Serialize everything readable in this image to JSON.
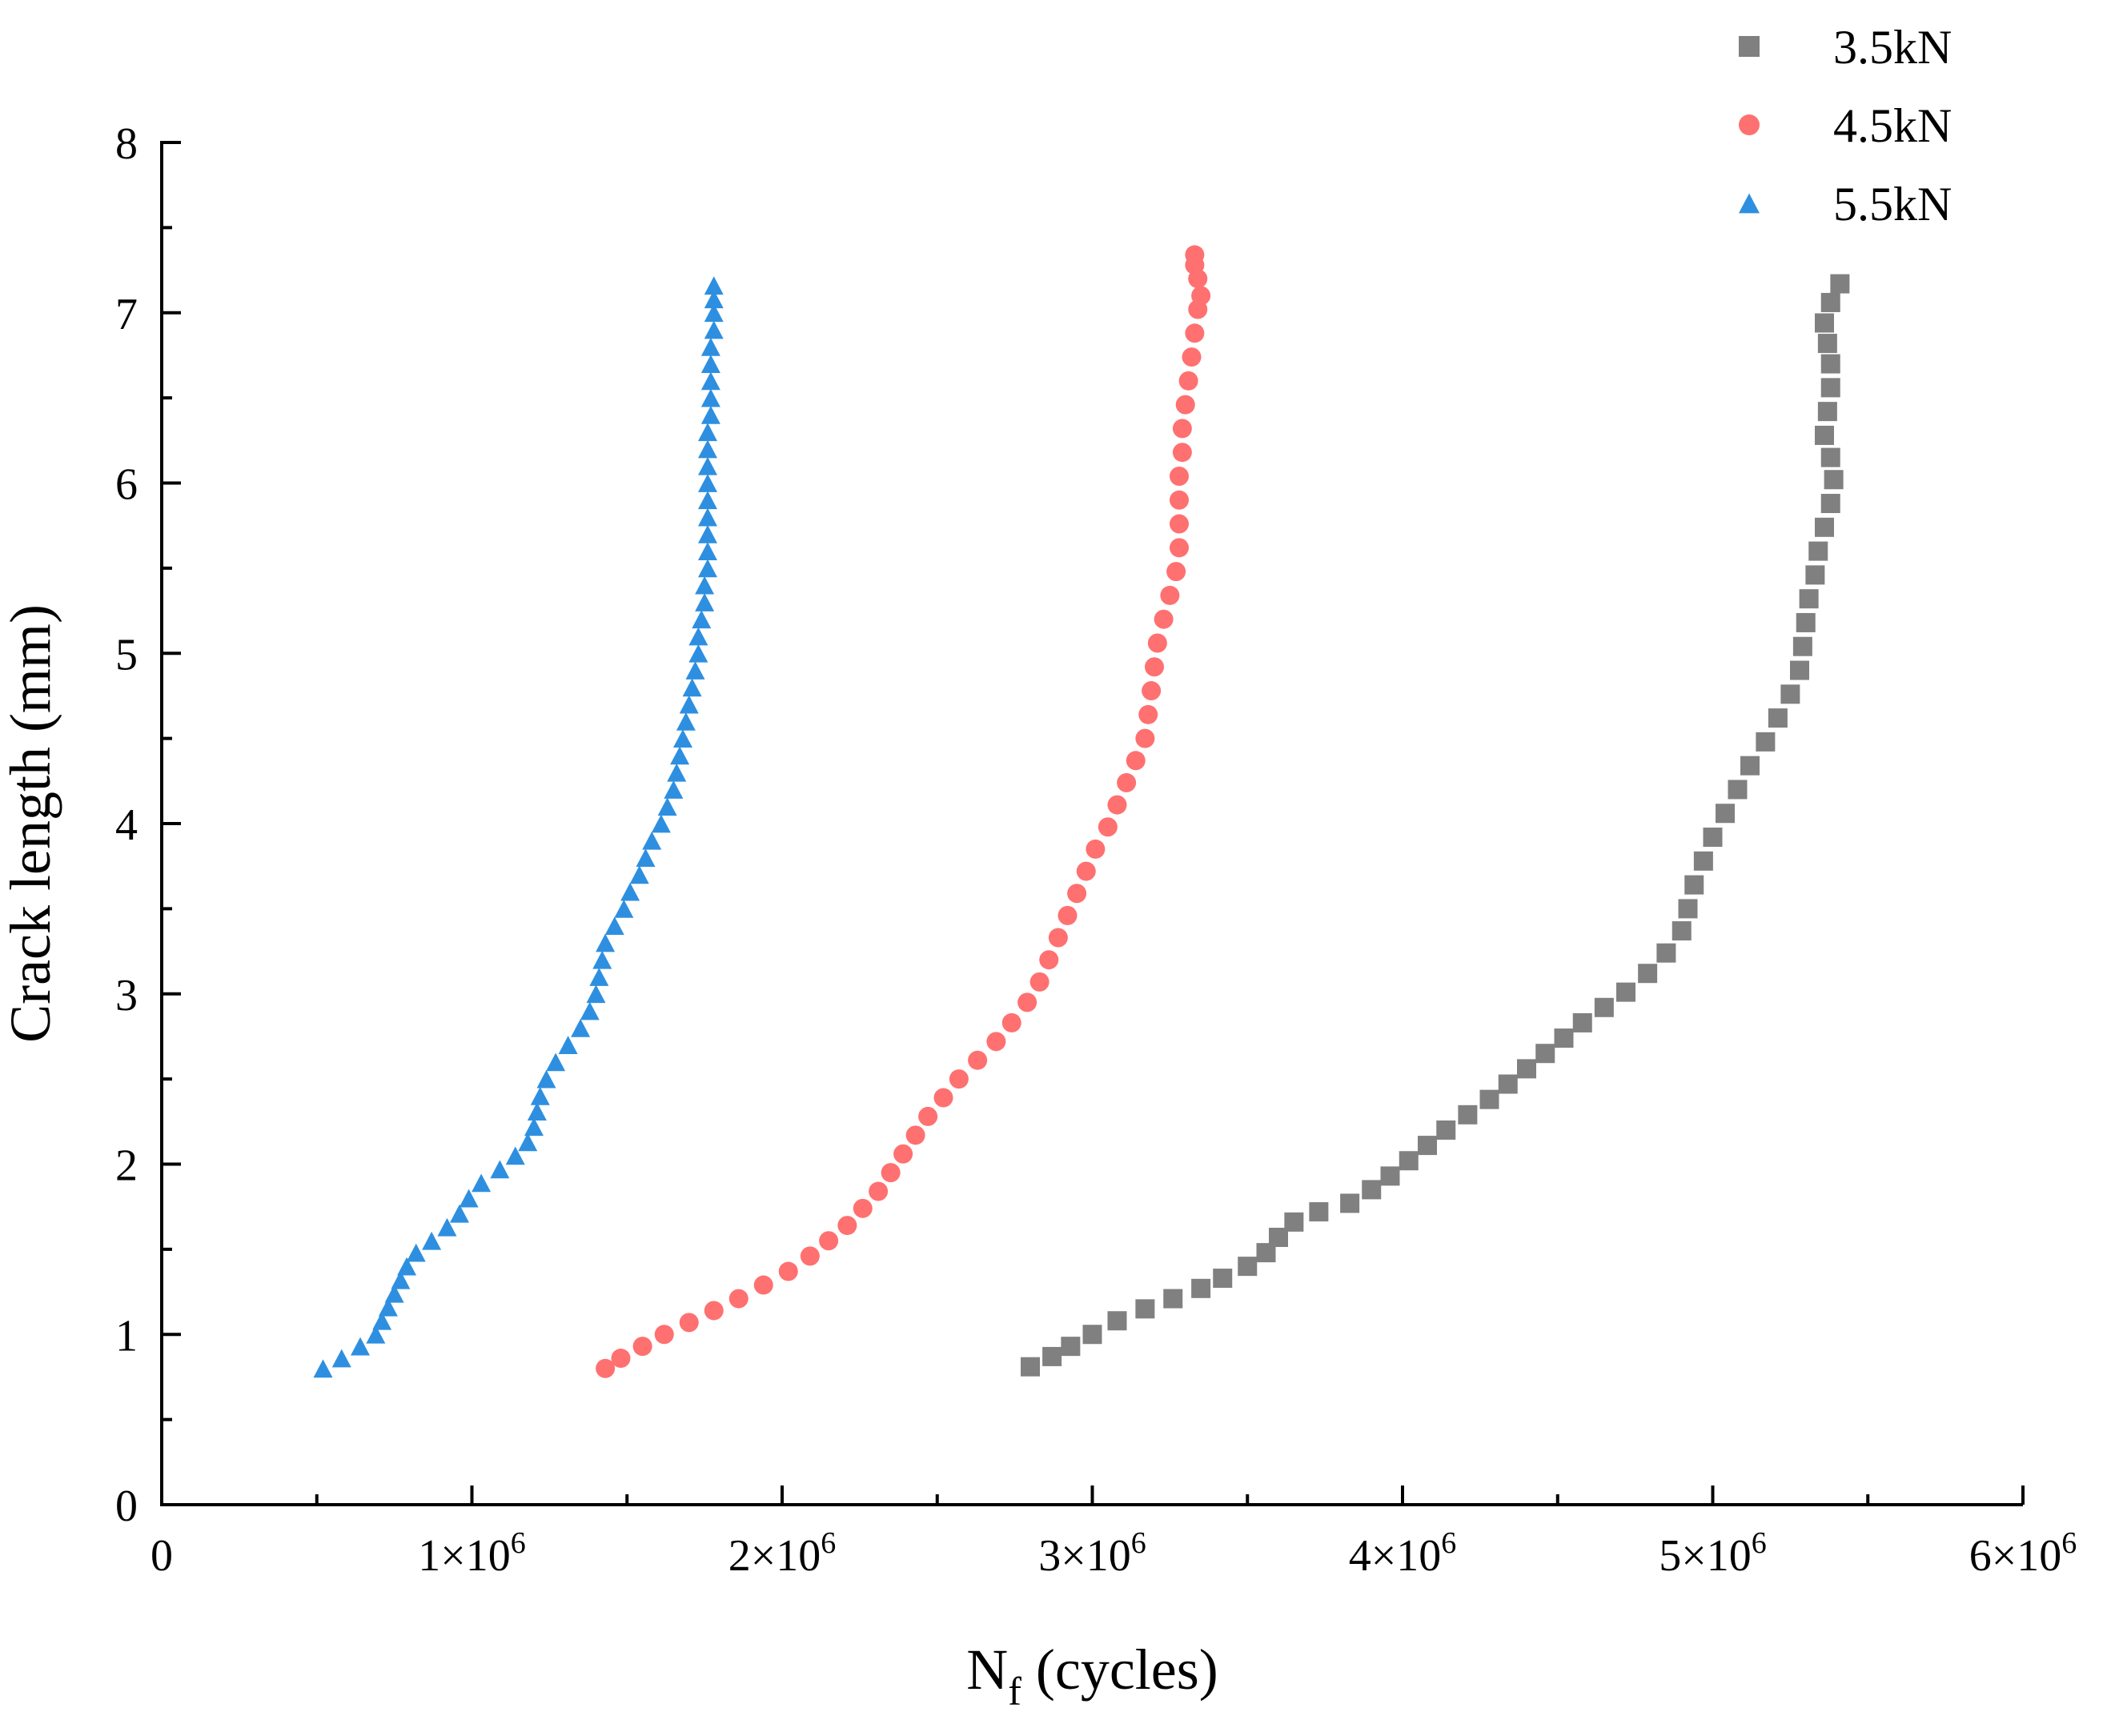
{
  "chart_data": {
    "type": "scatter",
    "title": "",
    "xlabel": {
      "main": "N",
      "sub": "f",
      "rest": " (cycles)"
    },
    "ylabel": "Crack length (mm)",
    "xlim": [
      0,
      6000000
    ],
    "ylim": [
      0,
      8
    ],
    "x_ticks": [
      {
        "value": 0,
        "label": "0"
      },
      {
        "value": 1000000,
        "mant": "1×10",
        "exp": "6"
      },
      {
        "value": 2000000,
        "mant": "2×10",
        "exp": "6"
      },
      {
        "value": 3000000,
        "mant": "3×10",
        "exp": "6"
      },
      {
        "value": 4000000,
        "mant": "4×10",
        "exp": "6"
      },
      {
        "value": 5000000,
        "mant": "5×10",
        "exp": "6"
      },
      {
        "value": 6000000,
        "mant": "6×10",
        "exp": "6"
      }
    ],
    "y_ticks": [
      0,
      1,
      2,
      3,
      4,
      5,
      6,
      7,
      8
    ],
    "legend_position": "top-right",
    "series": [
      {
        "name": "3.5kN",
        "marker": "square",
        "color": "#808080",
        "points": [
          [
            2800000,
            0.81
          ],
          [
            2870000,
            0.87
          ],
          [
            2930000,
            0.93
          ],
          [
            3000000,
            1.0
          ],
          [
            3080000,
            1.08
          ],
          [
            3170000,
            1.15
          ],
          [
            3260000,
            1.21
          ],
          [
            3350000,
            1.27
          ],
          [
            3420000,
            1.33
          ],
          [
            3500000,
            1.4
          ],
          [
            3560000,
            1.48
          ],
          [
            3600000,
            1.57
          ],
          [
            3650000,
            1.66
          ],
          [
            3730000,
            1.72
          ],
          [
            3830000,
            1.77
          ],
          [
            3900000,
            1.85
          ],
          [
            3960000,
            1.93
          ],
          [
            4020000,
            2.02
          ],
          [
            4080000,
            2.11
          ],
          [
            4140000,
            2.2
          ],
          [
            4210000,
            2.29
          ],
          [
            4280000,
            2.38
          ],
          [
            4340000,
            2.47
          ],
          [
            4400000,
            2.56
          ],
          [
            4460000,
            2.65
          ],
          [
            4520000,
            2.74
          ],
          [
            4580000,
            2.83
          ],
          [
            4650000,
            2.92
          ],
          [
            4720000,
            3.01
          ],
          [
            4790000,
            3.12
          ],
          [
            4850000,
            3.24
          ],
          [
            4900000,
            3.37
          ],
          [
            4920000,
            3.5
          ],
          [
            4940000,
            3.64
          ],
          [
            4970000,
            3.78
          ],
          [
            5000000,
            3.92
          ],
          [
            5040000,
            4.06
          ],
          [
            5080000,
            4.2
          ],
          [
            5120000,
            4.34
          ],
          [
            5170000,
            4.48
          ],
          [
            5210000,
            4.62
          ],
          [
            5250000,
            4.76
          ],
          [
            5280000,
            4.9
          ],
          [
            5290000,
            5.04
          ],
          [
            5300000,
            5.18
          ],
          [
            5310000,
            5.32
          ],
          [
            5330000,
            5.46
          ],
          [
            5340000,
            5.6
          ],
          [
            5360000,
            5.74
          ],
          [
            5380000,
            5.88
          ],
          [
            5390000,
            6.02
          ],
          [
            5380000,
            6.15
          ],
          [
            5360000,
            6.28
          ],
          [
            5370000,
            6.42
          ],
          [
            5380000,
            6.56
          ],
          [
            5380000,
            6.7
          ],
          [
            5370000,
            6.82
          ],
          [
            5360000,
            6.94
          ],
          [
            5380000,
            7.06
          ],
          [
            5410000,
            7.17
          ]
        ]
      },
      {
        "name": "4.5kN",
        "marker": "circle",
        "color": "#FF7070",
        "points": [
          [
            1430000,
            0.8
          ],
          [
            1480000,
            0.86
          ],
          [
            1550000,
            0.93
          ],
          [
            1620000,
            1.0
          ],
          [
            1700000,
            1.07
          ],
          [
            1780000,
            1.14
          ],
          [
            1860000,
            1.21
          ],
          [
            1940000,
            1.29
          ],
          [
            2020000,
            1.37
          ],
          [
            2090000,
            1.46
          ],
          [
            2150000,
            1.55
          ],
          [
            2210000,
            1.64
          ],
          [
            2260000,
            1.74
          ],
          [
            2310000,
            1.84
          ],
          [
            2350000,
            1.95
          ],
          [
            2390000,
            2.06
          ],
          [
            2430000,
            2.17
          ],
          [
            2470000,
            2.28
          ],
          [
            2520000,
            2.39
          ],
          [
            2570000,
            2.5
          ],
          [
            2630000,
            2.61
          ],
          [
            2690000,
            2.72
          ],
          [
            2740000,
            2.83
          ],
          [
            2790000,
            2.95
          ],
          [
            2830000,
            3.07
          ],
          [
            2860000,
            3.2
          ],
          [
            2890000,
            3.33
          ],
          [
            2920000,
            3.46
          ],
          [
            2950000,
            3.59
          ],
          [
            2980000,
            3.72
          ],
          [
            3010000,
            3.85
          ],
          [
            3050000,
            3.98
          ],
          [
            3080000,
            4.11
          ],
          [
            3110000,
            4.24
          ],
          [
            3140000,
            4.37
          ],
          [
            3170000,
            4.5
          ],
          [
            3180000,
            4.64
          ],
          [
            3190000,
            4.78
          ],
          [
            3200000,
            4.92
          ],
          [
            3210000,
            5.06
          ],
          [
            3230000,
            5.2
          ],
          [
            3250000,
            5.34
          ],
          [
            3270000,
            5.48
          ],
          [
            3280000,
            5.62
          ],
          [
            3280000,
            5.76
          ],
          [
            3280000,
            5.9
          ],
          [
            3280000,
            6.04
          ],
          [
            3290000,
            6.18
          ],
          [
            3290000,
            6.32
          ],
          [
            3300000,
            6.46
          ],
          [
            3310000,
            6.6
          ],
          [
            3320000,
            6.74
          ],
          [
            3330000,
            6.88
          ],
          [
            3340000,
            7.02
          ],
          [
            3350000,
            7.1
          ],
          [
            3340000,
            7.2
          ],
          [
            3330000,
            7.28
          ],
          [
            3330000,
            7.34
          ]
        ]
      },
      {
        "name": "5.5kN",
        "marker": "triangle",
        "color": "#2E8FE0",
        "points": [
          [
            520000,
            0.8
          ],
          [
            580000,
            0.86
          ],
          [
            640000,
            0.93
          ],
          [
            690000,
            1.0
          ],
          [
            710000,
            1.08
          ],
          [
            730000,
            1.16
          ],
          [
            750000,
            1.24
          ],
          [
            770000,
            1.32
          ],
          [
            790000,
            1.4
          ],
          [
            820000,
            1.48
          ],
          [
            870000,
            1.55
          ],
          [
            920000,
            1.63
          ],
          [
            960000,
            1.71
          ],
          [
            990000,
            1.8
          ],
          [
            1030000,
            1.89
          ],
          [
            1090000,
            1.97
          ],
          [
            1140000,
            2.05
          ],
          [
            1180000,
            2.13
          ],
          [
            1200000,
            2.22
          ],
          [
            1210000,
            2.31
          ],
          [
            1220000,
            2.4
          ],
          [
            1240000,
            2.5
          ],
          [
            1270000,
            2.6
          ],
          [
            1310000,
            2.7
          ],
          [
            1350000,
            2.8
          ],
          [
            1380000,
            2.9
          ],
          [
            1400000,
            3.0
          ],
          [
            1410000,
            3.1
          ],
          [
            1420000,
            3.2
          ],
          [
            1430000,
            3.3
          ],
          [
            1460000,
            3.4
          ],
          [
            1490000,
            3.5
          ],
          [
            1510000,
            3.6
          ],
          [
            1540000,
            3.7
          ],
          [
            1560000,
            3.8
          ],
          [
            1580000,
            3.9
          ],
          [
            1610000,
            4.0
          ],
          [
            1630000,
            4.1
          ],
          [
            1650000,
            4.2
          ],
          [
            1660000,
            4.3
          ],
          [
            1670000,
            4.4
          ],
          [
            1680000,
            4.5
          ],
          [
            1690000,
            4.6
          ],
          [
            1700000,
            4.7
          ],
          [
            1710000,
            4.8
          ],
          [
            1720000,
            4.9
          ],
          [
            1730000,
            5.0
          ],
          [
            1730000,
            5.1
          ],
          [
            1740000,
            5.2
          ],
          [
            1750000,
            5.3
          ],
          [
            1750000,
            5.4
          ],
          [
            1760000,
            5.5
          ],
          [
            1760000,
            5.6
          ],
          [
            1760000,
            5.7
          ],
          [
            1760000,
            5.8
          ],
          [
            1760000,
            5.9
          ],
          [
            1760000,
            6.0
          ],
          [
            1760000,
            6.1
          ],
          [
            1760000,
            6.2
          ],
          [
            1760000,
            6.3
          ],
          [
            1770000,
            6.4
          ],
          [
            1770000,
            6.5
          ],
          [
            1770000,
            6.6
          ],
          [
            1770000,
            6.7
          ],
          [
            1770000,
            6.8
          ],
          [
            1780000,
            6.9
          ],
          [
            1780000,
            7.0
          ],
          [
            1780000,
            7.08
          ],
          [
            1780000,
            7.16
          ]
        ]
      }
    ]
  }
}
